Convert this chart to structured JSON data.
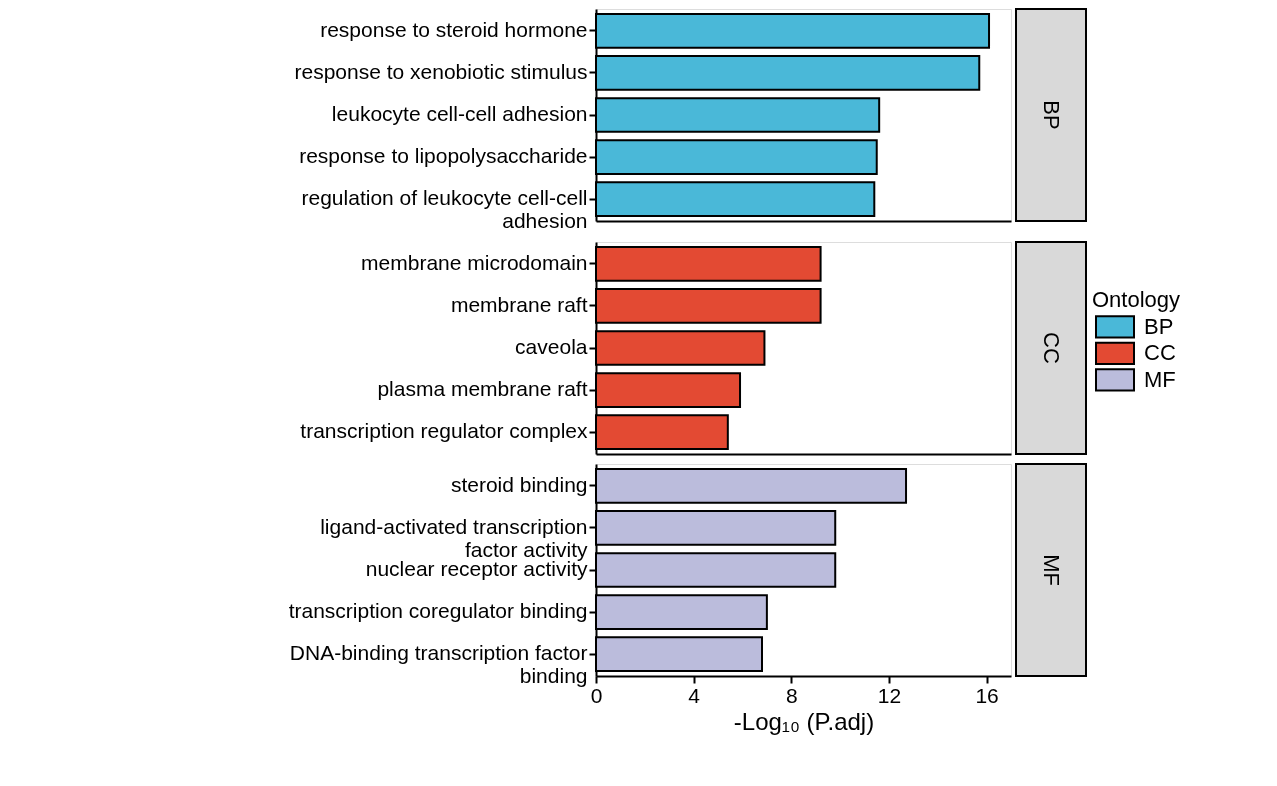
{
  "chart_data": [
    {
      "type": "bar",
      "orientation": "horizontal",
      "categories": [
        "response to steroid hormone",
        "response to xenobiotic stimulus",
        "leukocyte cell-cell adhesion",
        "response to lipopolysaccharide",
        "regulation of leukocyte cell-cell adhesion"
      ],
      "series": [
        {
          "name": "BP",
          "color": "#4ab8d8",
          "values": [
            16.1,
            15.7,
            11.6,
            11.5,
            11.4
          ]
        }
      ],
      "xlim": [
        0,
        17
      ],
      "xticks": [
        0,
        4,
        8,
        12,
        16
      ],
      "tick_labels": "y"
    },
    {
      "type": "bar",
      "orientation": "horizontal",
      "categories": [
        "membrane microdomain",
        "membrane raft",
        "caveola",
        "plasma membrane raft",
        "transcription regulator complex"
      ],
      "series": [
        {
          "name": "CC",
          "color": "#e34a33",
          "values": [
            9.2,
            9.2,
            6.9,
            5.9,
            5.4
          ]
        }
      ],
      "xlim": [
        0,
        17
      ],
      "xticks": [
        0,
        4,
        8,
        12,
        16
      ],
      "tick_labels": "y",
      "legend": "right",
      "legend_title": "Ontology"
    },
    {
      "type": "bar",
      "orientation": "horizontal",
      "categories": [
        "steroid binding",
        "ligand-activated transcription factor activity",
        "nuclear receptor activity",
        "transcription coregulator binding",
        "DNA-binding transcription factor binding"
      ],
      "series": [
        {
          "name": "MF",
          "color": "#bbbcdc",
          "values": [
            12.7,
            9.8,
            9.8,
            7.0,
            6.8
          ]
        }
      ],
      "xlim": [
        0,
        17
      ],
      "xticks": [
        0,
        4,
        8,
        12,
        16
      ],
      "xlabel": "-Log₁₀ (P.adj)"
    }
  ]
}
